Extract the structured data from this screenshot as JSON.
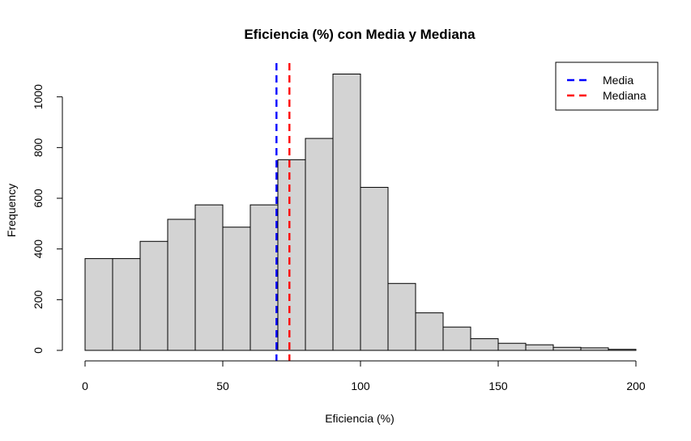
{
  "chart_data": {
    "type": "bar",
    "title": "Eficiencia (%) con Media y Mediana",
    "xlabel": "Eficiencia (%)",
    "ylabel": "Frequency",
    "xlim": [
      0,
      200
    ],
    "ylim": [
      0,
      1100
    ],
    "x_ticks": [
      0,
      50,
      100,
      150,
      200
    ],
    "y_ticks": [
      0,
      200,
      400,
      600,
      800,
      1000
    ],
    "bin_width": 10,
    "bins": [
      {
        "start": 0,
        "end": 10,
        "count": 362
      },
      {
        "start": 10,
        "end": 20,
        "count": 362
      },
      {
        "start": 20,
        "end": 30,
        "count": 430
      },
      {
        "start": 30,
        "end": 40,
        "count": 517
      },
      {
        "start": 40,
        "end": 50,
        "count": 574
      },
      {
        "start": 50,
        "end": 60,
        "count": 486
      },
      {
        "start": 60,
        "end": 70,
        "count": 574
      },
      {
        "start": 70,
        "end": 80,
        "count": 752
      },
      {
        "start": 80,
        "end": 90,
        "count": 836
      },
      {
        "start": 90,
        "end": 100,
        "count": 1090
      },
      {
        "start": 100,
        "end": 110,
        "count": 643
      },
      {
        "start": 110,
        "end": 120,
        "count": 264
      },
      {
        "start": 120,
        "end": 130,
        "count": 148
      },
      {
        "start": 130,
        "end": 140,
        "count": 92
      },
      {
        "start": 140,
        "end": 150,
        "count": 46
      },
      {
        "start": 150,
        "end": 160,
        "count": 28
      },
      {
        "start": 160,
        "end": 170,
        "count": 22
      },
      {
        "start": 170,
        "end": 180,
        "count": 12
      },
      {
        "start": 180,
        "end": 190,
        "count": 10
      },
      {
        "start": 190,
        "end": 200,
        "count": 4
      }
    ],
    "bar_fill": "#d3d3d3",
    "bar_stroke": "#000000",
    "reference_lines": [
      {
        "name": "Media",
        "x": 69.5,
        "color": "#0000ff",
        "style": "dashed"
      },
      {
        "name": "Mediana",
        "x": 74.2,
        "color": "#ff0000",
        "style": "dashed"
      }
    ],
    "legend": {
      "position": "top-right",
      "items": [
        {
          "label": "Media",
          "color": "#0000ff"
        },
        {
          "label": "Mediana",
          "color": "#ff0000"
        }
      ]
    },
    "grid": false
  }
}
